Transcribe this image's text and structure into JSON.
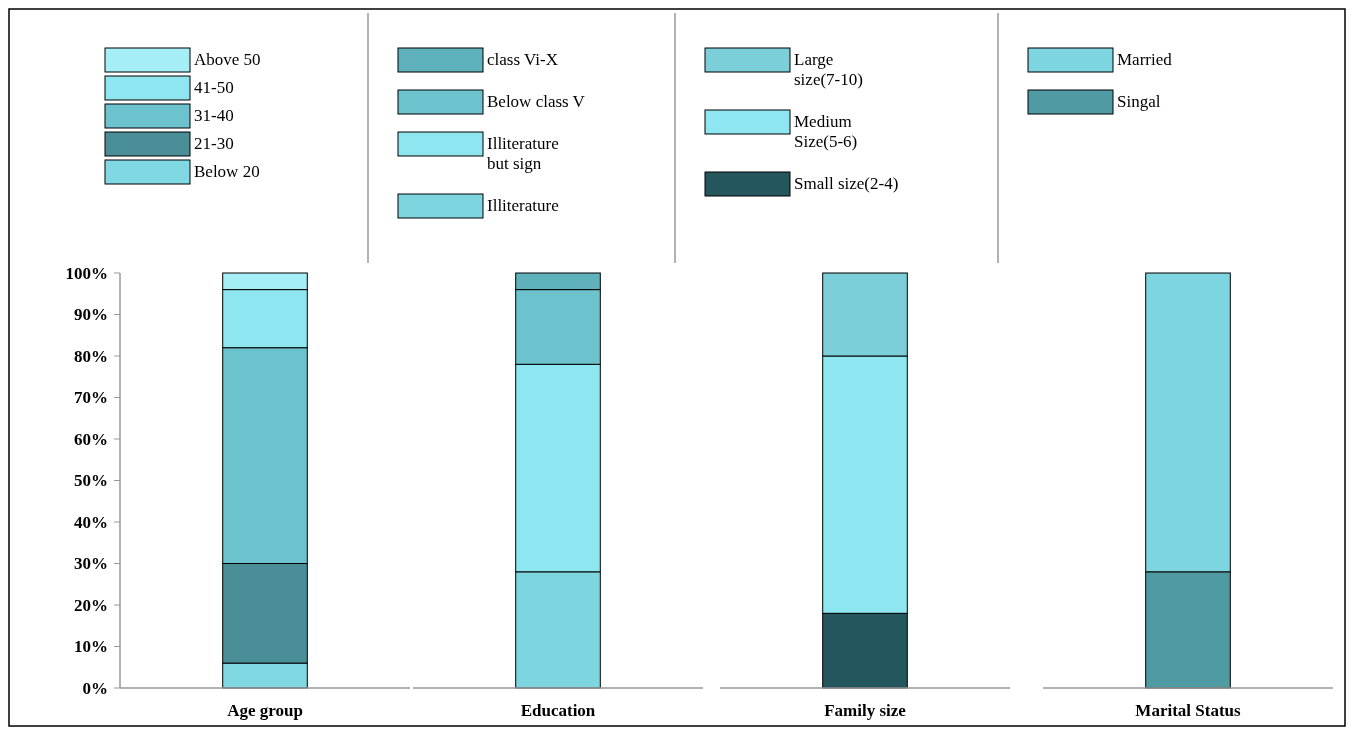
{
  "chart_data": [
    {
      "type": "bar",
      "stacked": true,
      "legend": "top",
      "categories": [
        "Age group"
      ],
      "ylim": [
        0,
        100
      ],
      "yticks": [
        {
          "value": 0,
          "label": "0%"
        },
        {
          "value": 10,
          "label": "10%"
        },
        {
          "value": 20,
          "label": "20%"
        },
        {
          "value": 30,
          "label": "30%"
        },
        {
          "value": 40,
          "label": "40%"
        },
        {
          "value": 50,
          "label": "50%"
        },
        {
          "value": 60,
          "label": "60%"
        },
        {
          "value": 70,
          "label": "70%"
        },
        {
          "value": 80,
          "label": "80%"
        },
        {
          "value": 90,
          "label": "90%"
        },
        {
          "value": 100,
          "label": "100%"
        }
      ],
      "series": [
        {
          "name": "Below 20",
          "color": "#7fd8e2",
          "values": [
            6
          ]
        },
        {
          "name": "21-30",
          "color": "#4a8f98",
          "values": [
            24
          ]
        },
        {
          "name": "31-40",
          "color": "#6cc3cd",
          "values": [
            52
          ]
        },
        {
          "name": "41-50",
          "color": "#8ee6f0",
          "values": [
            14
          ]
        },
        {
          "name": "Above 50",
          "color": "#a6eef5",
          "values": [
            4
          ]
        }
      ]
    },
    {
      "type": "bar",
      "stacked": true,
      "legend": "top",
      "tick_labels": "x",
      "categories": [
        "Education"
      ],
      "ylim": [
        0,
        100
      ],
      "series": [
        {
          "name": "Illiterature",
          "color": "#7dd5df",
          "values": [
            28
          ]
        },
        {
          "name": "Illiterature but sign",
          "color": "#8ee6f0",
          "values": [
            50
          ]
        },
        {
          "name": "Below class V",
          "color": "#6cc3cd",
          "values": [
            18
          ]
        },
        {
          "name": "class Vi-X",
          "color": "#5fb2bc",
          "values": [
            4
          ]
        }
      ]
    },
    {
      "type": "bar",
      "stacked": true,
      "legend": "top",
      "tick_labels": "x",
      "categories": [
        "Family size"
      ],
      "ylim": [
        0,
        100
      ],
      "series": [
        {
          "name": "Small size(2-4)",
          "color": "#24575d",
          "values": [
            18
          ]
        },
        {
          "name": "Medium Size(5-6)",
          "color": "#8ee6f0",
          "values": [
            62
          ]
        },
        {
          "name": "Large size(7-10)",
          "color": "#7ccfd9",
          "values": [
            20
          ]
        }
      ]
    },
    {
      "type": "bar",
      "stacked": true,
      "legend": "top",
      "tick_labels": "x",
      "categories": [
        "Marital Status"
      ],
      "ylim": [
        0,
        100
      ],
      "series": [
        {
          "name": "Singal",
          "color": "#4f9aa3",
          "values": [
            28
          ]
        },
        {
          "name": "Married",
          "color": "#7dd5df",
          "values": [
            72
          ]
        }
      ]
    }
  ]
}
